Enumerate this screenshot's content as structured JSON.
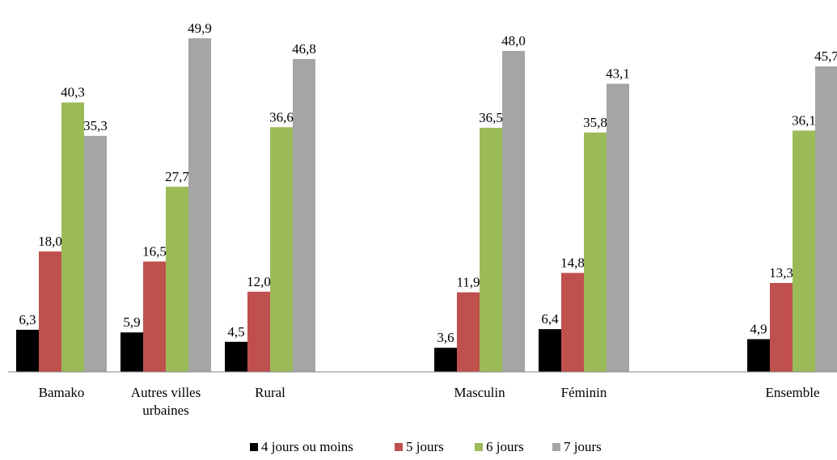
{
  "chart_data": {
    "type": "bar",
    "title": "",
    "xlabel": "",
    "ylabel": "",
    "ylim": [
      0,
      52
    ],
    "grid": false,
    "legend_position": "bottom",
    "groups": [
      {
        "label_lines": [
          "Bamako"
        ],
        "values": [
          6.3,
          18.0,
          40.3,
          35.3
        ],
        "labels": [
          "6,3",
          "18,0",
          "40,3",
          "35,3"
        ]
      },
      {
        "label_lines": [
          "Autres villes",
          "urbaines"
        ],
        "values": [
          5.9,
          16.5,
          27.7,
          49.9
        ],
        "labels": [
          "5,9",
          "16,5",
          "27,7",
          "49,9"
        ]
      },
      {
        "label_lines": [
          "Rural"
        ],
        "values": [
          4.5,
          12.0,
          36.6,
          46.8
        ],
        "labels": [
          "4,5",
          "12,0",
          "36,6",
          "46,8"
        ]
      },
      {
        "label_lines": [
          "Masculin"
        ],
        "values": [
          3.6,
          11.9,
          36.5,
          48.0
        ],
        "labels": [
          "3,6",
          "11,9",
          "36,5",
          "48,0"
        ]
      },
      {
        "label_lines": [
          "Féminin"
        ],
        "values": [
          6.4,
          14.8,
          35.8,
          43.1
        ],
        "labels": [
          "6,4",
          "14,8",
          "35,8",
          "43,1"
        ]
      },
      {
        "label_lines": [
          "Ensemble"
        ],
        "values": [
          4.9,
          13.3,
          36.1,
          45.7
        ],
        "labels": [
          "4,9",
          "13,3",
          "36,1",
          "45,7"
        ]
      }
    ],
    "series": [
      {
        "name": "4 jours ou moins",
        "color": "#000000"
      },
      {
        "name": "5 jours",
        "color": "#c0504d"
      },
      {
        "name": "6 jours",
        "color": "#9bbb59"
      },
      {
        "name": "7 jours",
        "color": "#a5a5a5"
      }
    ]
  }
}
